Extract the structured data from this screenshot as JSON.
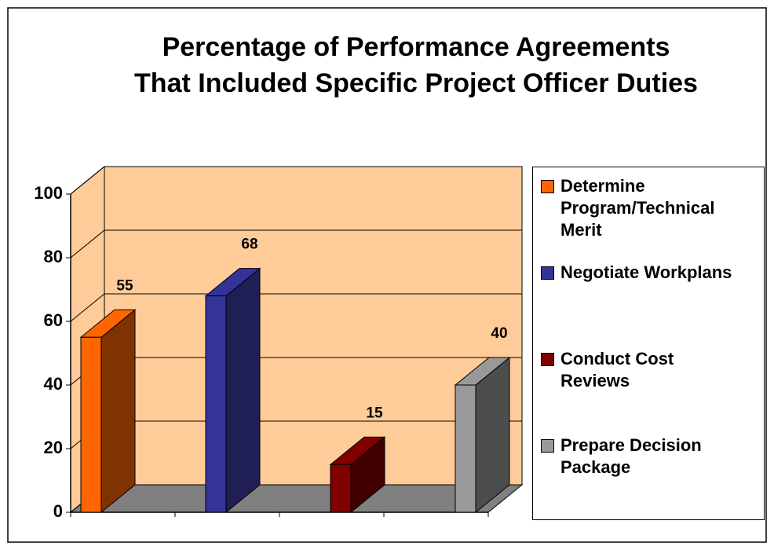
{
  "chart_data": {
    "type": "bar3d",
    "title": [
      "Percentage of Performance Agreements",
      "That Included Specific Project Officer Duties"
    ],
    "series": [
      {
        "name": "Determine Program/Technical Merit",
        "color": "#ff6600",
        "side_color": "#803300",
        "values": [
          55
        ]
      },
      {
        "name": "Negotiate Workplans",
        "color": "#333399",
        "side_color": "#1f1f55",
        "values": [
          68
        ]
      },
      {
        "name": "Conduct Cost Reviews",
        "color": "#800000",
        "side_color": "#400000",
        "values": [
          15
        ]
      },
      {
        "name": "Prepare Decision Package",
        "color": "#999999",
        "side_color": "#4d4d4d",
        "values": [
          40
        ]
      }
    ],
    "ylim": [
      0,
      100
    ],
    "yticks": [
      0,
      20,
      40,
      60,
      80,
      100
    ],
    "grid": true,
    "wall_color": "#ffcc99",
    "floor_color": "#808080",
    "legend": "right"
  }
}
